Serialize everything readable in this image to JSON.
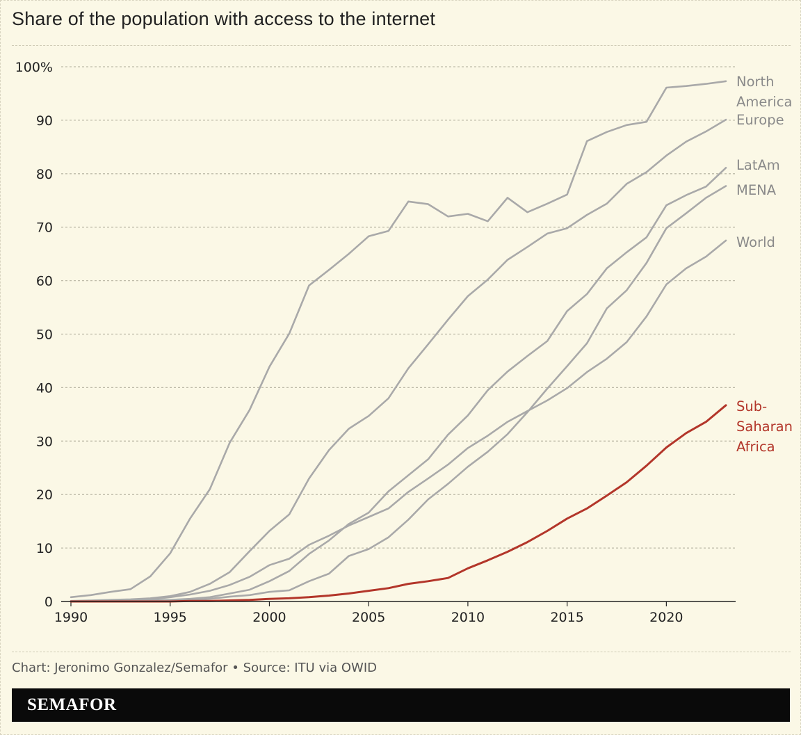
{
  "title": "Share of the population with access to the internet",
  "footer": {
    "credit": "Chart: Jeronimo Gonzalez/Semafor • Source: ITU via OWID",
    "brand": "SEMAFOR"
  },
  "colors": {
    "background": "#fbf8e6",
    "gray_series": "#a9a9a9",
    "highlight": "#b3362a",
    "grid": "#bdbaa8"
  },
  "chart_data": {
    "type": "line",
    "title": "Share of the population with access to the internet",
    "xlabel": "",
    "ylabel": "",
    "xlim": [
      1990,
      2023
    ],
    "ylim": [
      0,
      100
    ],
    "x_ticks": [
      1990,
      1995,
      2000,
      2005,
      2010,
      2015,
      2020
    ],
    "y_ticks": [
      {
        "value": 0,
        "label": "0"
      },
      {
        "value": 10,
        "label": "10"
      },
      {
        "value": 20,
        "label": "20"
      },
      {
        "value": 30,
        "label": "30"
      },
      {
        "value": 40,
        "label": "40"
      },
      {
        "value": 50,
        "label": "50"
      },
      {
        "value": 60,
        "label": "60"
      },
      {
        "value": 70,
        "label": "70"
      },
      {
        "value": 80,
        "label": "80"
      },
      {
        "value": 90,
        "label": "90"
      },
      {
        "value": 100,
        "label": "100%"
      }
    ],
    "grid": true,
    "x": [
      1990,
      1991,
      1992,
      1993,
      1994,
      1995,
      1996,
      1997,
      1998,
      1999,
      2000,
      2001,
      2002,
      2003,
      2004,
      2005,
      2006,
      2007,
      2008,
      2009,
      2010,
      2011,
      2012,
      2013,
      2014,
      2015,
      2016,
      2017,
      2018,
      2019,
      2020,
      2021,
      2022,
      2023
    ],
    "series": [
      {
        "name": "North America",
        "label_lines": [
          "North",
          "America"
        ],
        "highlight": false,
        "values": [
          0.8,
          1.2,
          1.8,
          2.3,
          4.7,
          9.0,
          15.5,
          21.0,
          29.7,
          35.8,
          43.9,
          50.1,
          59.1,
          62.0,
          65.0,
          68.3,
          69.3,
          74.8,
          74.3,
          72.0,
          72.5,
          71.1,
          75.5,
          72.8,
          74.4,
          76.1,
          86.1,
          87.8,
          89.1,
          89.7,
          96.1,
          96.4,
          96.8,
          97.3
        ]
      },
      {
        "name": "Europe",
        "label_lines": [
          "Europe"
        ],
        "highlight": false,
        "values": [
          0.1,
          0.2,
          0.3,
          0.4,
          0.6,
          1.0,
          1.8,
          3.3,
          5.5,
          9.4,
          13.2,
          16.3,
          23.0,
          28.3,
          32.3,
          34.7,
          38.0,
          43.6,
          48.1,
          52.7,
          57.1,
          60.2,
          63.9,
          66.3,
          68.8,
          69.8,
          72.3,
          74.4,
          78.1,
          80.3,
          83.4,
          86.0,
          87.9,
          90.1
        ]
      },
      {
        "name": "LatAm",
        "label_lines": [
          "LatAm"
        ],
        "highlight": false,
        "values": [
          0.0,
          0.0,
          0.1,
          0.1,
          0.2,
          0.3,
          0.5,
          0.8,
          1.5,
          2.2,
          3.8,
          5.7,
          8.9,
          11.4,
          14.5,
          16.6,
          20.6,
          23.6,
          26.6,
          31.2,
          34.8,
          39.5,
          43.0,
          45.9,
          48.7,
          54.3,
          57.5,
          62.3,
          65.3,
          68.1,
          74.1,
          76.0,
          77.6,
          81.1
        ]
      },
      {
        "name": "MENA",
        "label_lines": [
          "MENA"
        ],
        "highlight": false,
        "values": [
          0.0,
          0.0,
          0.0,
          0.0,
          0.0,
          0.1,
          0.2,
          0.5,
          0.9,
          1.2,
          1.8,
          2.1,
          3.8,
          5.2,
          8.5,
          9.8,
          12.0,
          15.3,
          19.1,
          22.0,
          25.2,
          28.0,
          31.3,
          35.4,
          39.8,
          44.0,
          48.3,
          54.8,
          58.2,
          63.3,
          69.8,
          72.6,
          75.5,
          77.7
        ]
      },
      {
        "name": "World",
        "label_lines": [
          "World"
        ],
        "highlight": false,
        "values": [
          0.0,
          0.1,
          0.2,
          0.3,
          0.4,
          0.8,
          1.3,
          2.0,
          3.1,
          4.6,
          6.8,
          8.0,
          10.6,
          12.3,
          14.2,
          15.8,
          17.4,
          20.5,
          23.0,
          25.6,
          28.7,
          31.0,
          33.6,
          35.6,
          37.6,
          39.9,
          42.9,
          45.4,
          48.5,
          53.3,
          59.3,
          62.3,
          64.5,
          67.5
        ]
      },
      {
        "name": "Sub-Saharan Africa",
        "label_lines": [
          "Sub-",
          "Saharan",
          "Africa"
        ],
        "highlight": true,
        "values": [
          0.0,
          0.0,
          0.0,
          0.0,
          0.0,
          0.0,
          0.1,
          0.1,
          0.2,
          0.3,
          0.5,
          0.6,
          0.8,
          1.1,
          1.5,
          2.0,
          2.5,
          3.3,
          3.8,
          4.4,
          6.2,
          7.7,
          9.3,
          11.1,
          13.2,
          15.5,
          17.4,
          19.8,
          22.3,
          25.4,
          28.8,
          31.5,
          33.6,
          36.7
        ]
      }
    ]
  }
}
